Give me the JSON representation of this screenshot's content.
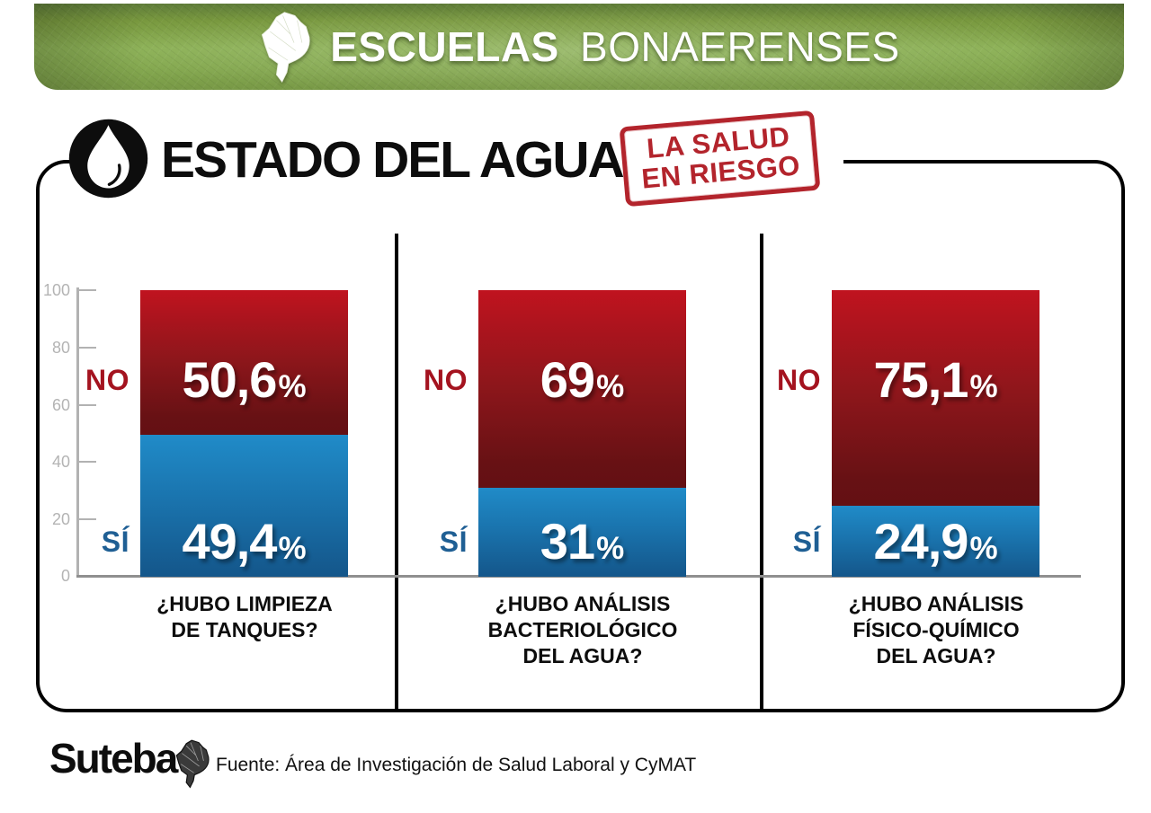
{
  "header": {
    "title_bold": "ESCUELAS",
    "title_light": "BONAERENSES"
  },
  "title_section": {
    "title": "ESTADO DEL AGUA",
    "stamp_line1": "LA SALUD",
    "stamp_line2": "EN RIESGO"
  },
  "axis": {
    "ticks": [
      "100",
      "80",
      "60",
      "40",
      "20",
      "0"
    ]
  },
  "labels": {
    "percent": "%"
  },
  "charts": [
    {
      "question": "¿HUBO LIMPIEZA\nDE TANQUES?",
      "no_label": "NO",
      "si_label": "SÍ",
      "no_value": "50,6",
      "si_value": "49,4",
      "no_pct": 50.6,
      "si_pct": 49.4
    },
    {
      "question": "¿HUBO ANÁLISIS\nBACTERIOLÓGICO\nDEL AGUA?",
      "no_label": "NO",
      "si_label": "SÍ",
      "no_value": "69",
      "si_value": "31",
      "no_pct": 69,
      "si_pct": 31
    },
    {
      "question": "¿HUBO ANÁLISIS\nFÍSICO-QUÍMICO\nDEL AGUA?",
      "no_label": "NO",
      "si_label": "SÍ",
      "no_value": "75,1",
      "si_value": "24,9",
      "no_pct": 75.1,
      "si_pct": 24.9
    }
  ],
  "footer": {
    "logo_text": "Suteba",
    "source": "Fuente: Área de Investigación de Salud Laboral y CyMAT"
  },
  "colors": {
    "green_banner": "#8cb156",
    "red_top": "#c0131f",
    "red_bottom": "#671114",
    "blue_top": "#208bc8",
    "blue_bottom": "#14568a",
    "no_label": "#a4131f",
    "si_label": "#1f5f94",
    "stamp_red": "#b3242c",
    "axis_gray": "#b2b2b2"
  },
  "chart_data": {
    "type": "bar",
    "stacked": true,
    "title": "ESTADO DEL AGUA",
    "subtitle": "LA SALUD EN RIESGO",
    "categories": [
      "¿Hubo limpieza de tanques?",
      "¿Hubo análisis bacteriológico del agua?",
      "¿Hubo análisis físico-químico del agua?"
    ],
    "series": [
      {
        "name": "NO",
        "values": [
          50.6,
          69,
          75.1
        ],
        "color": "#b11420"
      },
      {
        "name": "SÍ",
        "values": [
          49.4,
          31,
          24.9
        ],
        "color": "#1a7ab8"
      }
    ],
    "xlabel": "",
    "ylabel": "",
    "ylim": [
      0,
      100
    ],
    "yticks": [
      0,
      20,
      40,
      60,
      80,
      100
    ],
    "grid": false,
    "legend_position": "left-of-segments",
    "source": "Fuente: Área de Investigación de Salud Laboral y CyMAT"
  }
}
